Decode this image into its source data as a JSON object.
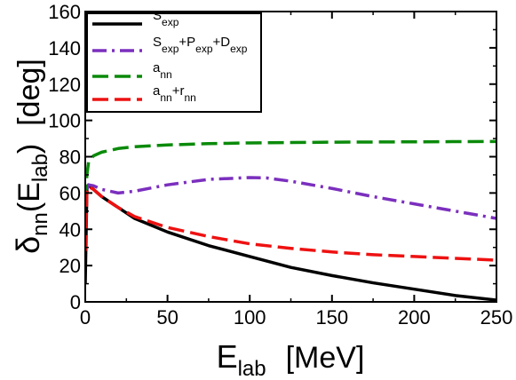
{
  "chart_data": {
    "type": "line",
    "xlabel": {
      "main": "E",
      "sub": "lab",
      "unit": "[MeV]"
    },
    "ylabel": {
      "main": "δ",
      "sub": "nn",
      "paren_open": "(E",
      "paren_sub": "lab",
      "paren_close": ")",
      "unit": "[deg]"
    },
    "xlim": [
      0,
      250
    ],
    "ylim": [
      0,
      160
    ],
    "xticks": [
      "0",
      "50",
      "100",
      "150",
      "200",
      "250"
    ],
    "yticks": [
      "0",
      "20",
      "40",
      "60",
      "80",
      "100",
      "120",
      "140",
      "160"
    ],
    "grid": false,
    "legend_position": "top-left",
    "series": [
      {
        "name": "S_exp",
        "legend": [
          {
            "t": "S",
            "sub": false
          },
          {
            "t": "exp",
            "sub": true
          }
        ],
        "color": "#000000",
        "dash": "solid",
        "x": [
          0,
          1,
          2,
          5,
          10,
          20,
          30,
          50,
          75,
          100,
          125,
          150,
          175,
          200,
          225,
          250
        ],
        "y": [
          10,
          62,
          64.5,
          62,
          58,
          52,
          46,
          38.5,
          31,
          25,
          19,
          14.5,
          10.5,
          7,
          3.5,
          1
        ]
      },
      {
        "name": "S_exp+P_exp+D_exp",
        "legend": [
          {
            "t": "S",
            "sub": false
          },
          {
            "t": "exp",
            "sub": true
          },
          {
            "t": "+P",
            "sub": false
          },
          {
            "t": "exp",
            "sub": true
          },
          {
            "t": "+D",
            "sub": false
          },
          {
            "t": "exp",
            "sub": true
          }
        ],
        "color": "#7b2fbe",
        "dash": "dashdot",
        "x": [
          1,
          2,
          5,
          10,
          20,
          30,
          50,
          75,
          100,
          110,
          125,
          150,
          175,
          200,
          225,
          250
        ],
        "y": [
          62,
          64.5,
          64,
          62,
          60,
          61,
          64.5,
          67.5,
          68.5,
          68.3,
          66.5,
          62.5,
          58,
          54,
          50,
          46
        ]
      },
      {
        "name": "a_nn",
        "legend": [
          {
            "t": "a",
            "sub": false
          },
          {
            "t": "nn",
            "sub": true
          }
        ],
        "color": "#0a8a0a",
        "dash": "dashed",
        "x": [
          0,
          1,
          2,
          5,
          10,
          20,
          30,
          50,
          75,
          100,
          125,
          150,
          175,
          200,
          225,
          250
        ],
        "y": [
          56,
          70,
          77,
          80.5,
          82.5,
          84.5,
          85.5,
          86.5,
          87.2,
          87.6,
          87.8,
          88,
          88.1,
          88.2,
          88.3,
          88.4
        ]
      },
      {
        "name": "a_nn+r_nn",
        "legend": [
          {
            "t": "a",
            "sub": false
          },
          {
            "t": "nn",
            "sub": true
          },
          {
            "t": "+r",
            "sub": false
          },
          {
            "t": "nn",
            "sub": true
          }
        ],
        "color": "#ee1111",
        "dash": "dashed",
        "x": [
          0,
          1,
          2,
          5,
          10,
          20,
          30,
          50,
          75,
          100,
          125,
          150,
          175,
          200,
          225,
          250
        ],
        "y": [
          28,
          60,
          63.5,
          62,
          58,
          52,
          47,
          41,
          36,
          32,
          29.5,
          27.5,
          26,
          25,
          24,
          23
        ]
      }
    ]
  }
}
